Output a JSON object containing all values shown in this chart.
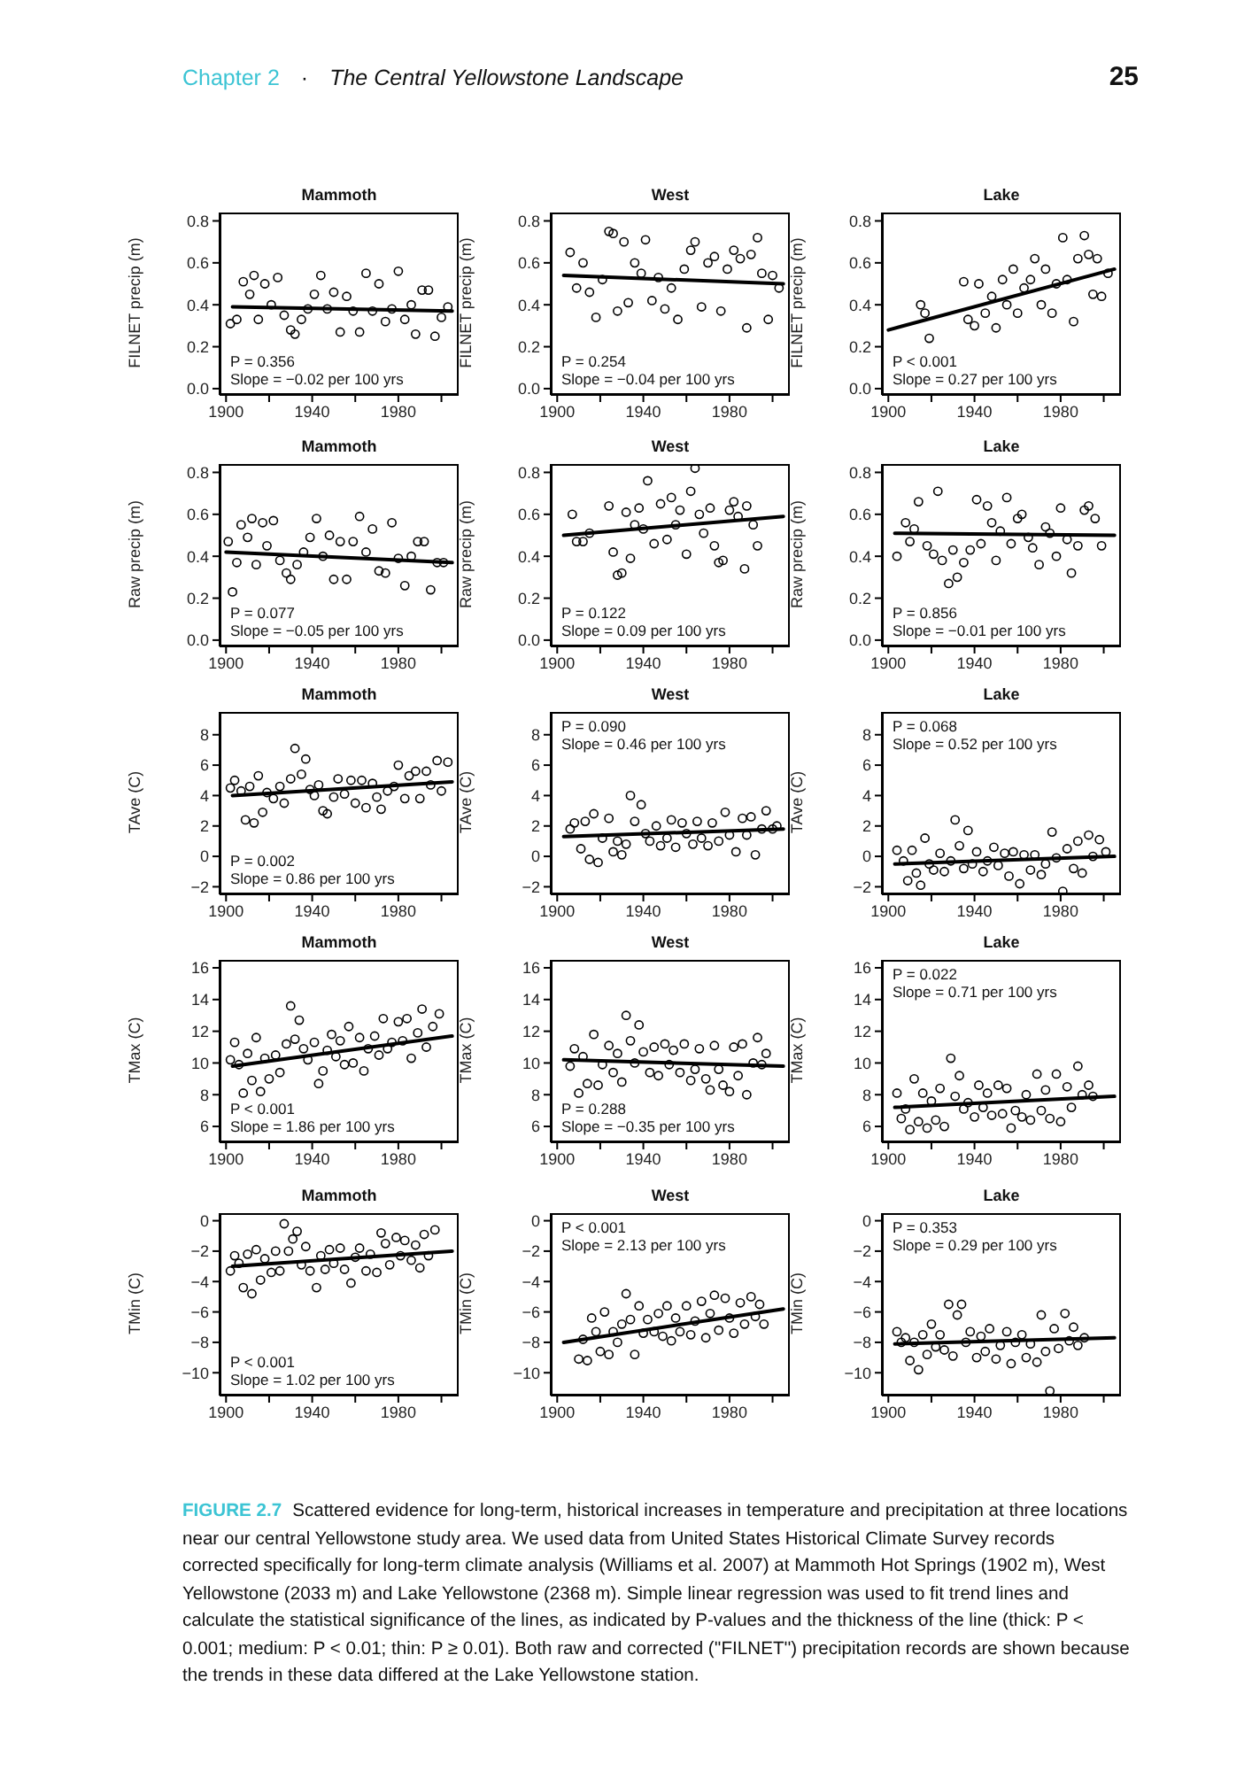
{
  "chart_data": [
    {
      "type": "scatter",
      "title": "Mammoth",
      "ylabel": "FILNET precip (m)",
      "marker": "circle",
      "xlim": [
        1897,
        2008
      ],
      "xticks": [
        1900,
        {
          "value": 1920,
          "label": null
        },
        1940,
        {
          "value": 1960,
          "label": null
        },
        1980,
        {
          "value": 2000,
          "label": null
        }
      ],
      "ylim": [
        -0.03,
        0.84
      ],
      "yticks": [
        {
          "value": 0,
          "label": "0.0"
        },
        0.2,
        0.4,
        0.6,
        0.8
      ],
      "annotations": [
        "Chapter 2",
        "·",
        "The Central Yellowstone Landscape",
        "25",
        "P = 0.356",
        "Slope = −0.02 per 100 yrs"
      ],
      "series": [
        {
          "type": "scatter",
          "color": "#000000",
          "x": [
            1902,
            1905,
            1908,
            1911,
            1913,
            1915,
            1918,
            1921,
            1924,
            1927,
            1930,
            1932,
            1935,
            1938,
            1941,
            1944,
            1947,
            1950,
            1953,
            1956,
            1959,
            1962,
            1965,
            1968,
            1971,
            1974,
            1977,
            1980,
            1983,
            1986,
            1988,
            1991,
            1994,
            1997,
            2000,
            2003
          ],
          "values": [
            0.31,
            0.33,
            0.51,
            0.45,
            0.54,
            0.33,
            0.5,
            0.4,
            0.53,
            0.35,
            0.28,
            0.26,
            0.33,
            0.38,
            0.45,
            0.54,
            0.38,
            0.46,
            0.27,
            0.44,
            0.37,
            0.27,
            0.55,
            0.37,
            0.5,
            0.32,
            0.38,
            0.56,
            0.33,
            0.4,
            0.26,
            0.47,
            0.47,
            0.25,
            0.34,
            0.39
          ]
        },
        {
          "type": "line",
          "color": "#000000",
          "x": [
            1903,
            2005
          ],
          "values": [
            0.39,
            0.37
          ],
          "marker": "none"
        }
      ]
    },
    {
      "type": "scatter",
      "title": "West",
      "ylabel": "FILNET precip (m)",
      "marker": "circle",
      "xlim": [
        1897,
        2008
      ],
      "xticks": [
        1900,
        {
          "value": 1920,
          "label": null
        },
        1940,
        {
          "value": 1960,
          "label": null
        },
        1980,
        {
          "value": 2000,
          "label": null
        }
      ],
      "ylim": [
        -0.03,
        0.84
      ],
      "yticks": [
        {
          "value": 0,
          "label": "0.0"
        },
        0.2,
        0.4,
        0.6,
        0.8
      ],
      "annotations": [
        "P = 0.254",
        "Slope = −0.04 per 100 yrs"
      ],
      "series": [
        {
          "type": "scatter",
          "color": "#000000",
          "x": [
            1906,
            1909,
            1912,
            1915,
            1918,
            1921,
            1924,
            1926,
            1928,
            1931,
            1933,
            1936,
            1939,
            1941,
            1944,
            1947,
            1950,
            1953,
            1956,
            1959,
            1962,
            1964,
            1967,
            1970,
            1973,
            1976,
            1979,
            1982,
            1985,
            1988,
            1990,
            1993,
            1995,
            1998,
            2000,
            2003
          ],
          "values": [
            0.65,
            0.48,
            0.6,
            0.46,
            0.34,
            0.52,
            0.75,
            0.74,
            0.37,
            0.7,
            0.41,
            0.6,
            0.55,
            0.71,
            0.42,
            0.53,
            0.38,
            0.48,
            0.33,
            0.57,
            0.66,
            0.7,
            0.39,
            0.6,
            0.63,
            0.37,
            0.57,
            0.66,
            0.62,
            0.29,
            0.64,
            0.72,
            0.55,
            0.33,
            0.54,
            0.48
          ]
        },
        {
          "type": "line",
          "color": "#000000",
          "x": [
            1903,
            2005
          ],
          "values": [
            0.54,
            0.5
          ],
          "marker": "none"
        }
      ]
    },
    {
      "type": "scatter",
      "title": "Lake",
      "ylabel": "FILNET precip (m)",
      "marker": "circle",
      "xlim": [
        1897,
        2008
      ],
      "xticks": [
        1900,
        {
          "value": 1920,
          "label": null
        },
        1940,
        {
          "value": 1960,
          "label": null
        },
        1980,
        {
          "value": 2000,
          "label": null
        }
      ],
      "ylim": [
        -0.03,
        0.84
      ],
      "yticks": [
        {
          "value": 0,
          "label": "0.0"
        },
        0.2,
        0.4,
        0.6,
        0.8
      ],
      "annotations": [
        "P < 0.001",
        "Slope = 0.27 per 100 yrs"
      ],
      "series": [
        {
          "type": "scatter",
          "color": "#000000",
          "x": [
            1915,
            1917,
            1919,
            1935,
            1937,
            1940,
            1942,
            1945,
            1948,
            1950,
            1953,
            1955,
            1958,
            1960,
            1963,
            1966,
            1968,
            1971,
            1973,
            1976,
            1978,
            1981,
            1983,
            1986,
            1988,
            1991,
            1993,
            1995,
            1997,
            1999,
            2002
          ],
          "values": [
            0.4,
            0.36,
            0.24,
            0.51,
            0.33,
            0.3,
            0.5,
            0.36,
            0.44,
            0.29,
            0.52,
            0.4,
            0.57,
            0.36,
            0.48,
            0.52,
            0.62,
            0.4,
            0.57,
            0.36,
            0.5,
            0.72,
            0.52,
            0.32,
            0.62,
            0.73,
            0.64,
            0.45,
            0.62,
            0.44,
            0.55
          ]
        },
        {
          "type": "line",
          "color": "#000000",
          "x": [
            1900,
            2005
          ],
          "values": [
            0.28,
            0.57
          ],
          "marker": "none"
        }
      ]
    },
    {
      "type": "scatter",
      "title": "Mammoth",
      "ylabel": "Raw precip (m)",
      "marker": "circle",
      "xlim": [
        1897,
        2008
      ],
      "xticks": [
        1900,
        {
          "value": 1920,
          "label": null
        },
        1940,
        {
          "value": 1960,
          "label": null
        },
        1980,
        {
          "value": 2000,
          "label": null
        }
      ],
      "ylim": [
        -0.03,
        0.84
      ],
      "yticks": [
        {
          "value": 0,
          "label": "0.0"
        },
        0.2,
        0.4,
        0.6,
        0.8
      ],
      "annotations": [
        "P = 0.077",
        "Slope = −0.05 per 100 yrs"
      ],
      "series": [
        {
          "type": "scatter",
          "color": "#000000",
          "x": [
            1901,
            1903,
            1905,
            1907,
            1910,
            1912,
            1914,
            1917,
            1919,
            1922,
            1925,
            1928,
            1930,
            1933,
            1936,
            1939,
            1942,
            1945,
            1948,
            1950,
            1953,
            1956,
            1959,
            1962,
            1965,
            1968,
            1971,
            1974,
            1977,
            1980,
            1983,
            1986,
            1989,
            1992,
            1995,
            1998,
            2001
          ],
          "values": [
            0.47,
            0.23,
            0.37,
            0.55,
            0.49,
            0.58,
            0.36,
            0.56,
            0.45,
            0.57,
            0.38,
            0.32,
            0.29,
            0.36,
            0.42,
            0.49,
            0.58,
            0.4,
            0.5,
            0.29,
            0.47,
            0.29,
            0.47,
            0.59,
            0.42,
            0.53,
            0.33,
            0.32,
            0.56,
            0.39,
            0.26,
            0.4,
            0.47,
            0.47,
            0.24,
            0.37,
            0.37
          ]
        },
        {
          "type": "line",
          "color": "#000000",
          "x": [
            1900,
            2005
          ],
          "values": [
            0.42,
            0.37
          ],
          "marker": "none"
        }
      ]
    },
    {
      "type": "scatter",
      "title": "West",
      "ylabel": "Raw precip (m)",
      "marker": "circle",
      "xlim": [
        1897,
        2008
      ],
      "xticks": [
        1900,
        {
          "value": 1920,
          "label": null
        },
        1940,
        {
          "value": 1960,
          "label": null
        },
        1980,
        {
          "value": 2000,
          "label": null
        }
      ],
      "ylim": [
        -0.03,
        0.84
      ],
      "yticks": [
        {
          "value": 0,
          "label": "0.0"
        },
        0.2,
        0.4,
        0.6,
        0.8
      ],
      "annotations": [
        "P = 0.122",
        "Slope = 0.09 per 100 yrs"
      ],
      "series": [
        {
          "type": "scatter",
          "color": "#000000",
          "x": [
            1907,
            1909,
            1912,
            1915,
            1924,
            1926,
            1928,
            1930,
            1932,
            1934,
            1936,
            1938,
            1940,
            1942,
            1945,
            1948,
            1951,
            1953,
            1955,
            1957,
            1960,
            1962,
            1964,
            1966,
            1968,
            1971,
            1973,
            1975,
            1977,
            1980,
            1982,
            1984,
            1987,
            1988,
            1991,
            1993
          ],
          "values": [
            0.6,
            0.47,
            0.47,
            0.51,
            0.64,
            0.42,
            0.31,
            0.32,
            0.61,
            0.39,
            0.55,
            0.63,
            0.53,
            0.76,
            0.46,
            0.65,
            0.48,
            0.68,
            0.55,
            0.62,
            0.41,
            0.71,
            0.82,
            0.6,
            0.51,
            0.63,
            0.45,
            0.37,
            0.38,
            0.62,
            0.66,
            0.59,
            0.34,
            0.64,
            0.55,
            0.45
          ]
        },
        {
          "type": "line",
          "color": "#000000",
          "x": [
            1903,
            2005
          ],
          "values": [
            0.5,
            0.59
          ],
          "marker": "none"
        }
      ]
    },
    {
      "type": "scatter",
      "title": "Lake",
      "ylabel": "Raw precip (m)",
      "marker": "circle",
      "xlim": [
        1897,
        2008
      ],
      "xticks": [
        1900,
        {
          "value": 1920,
          "label": null
        },
        1940,
        {
          "value": 1960,
          "label": null
        },
        1980,
        {
          "value": 2000,
          "label": null
        }
      ],
      "ylim": [
        -0.03,
        0.84
      ],
      "yticks": [
        {
          "value": 0,
          "label": "0.0"
        },
        0.2,
        0.4,
        0.6,
        0.8
      ],
      "annotations": [
        "P = 0.856",
        "Slope = −0.01 per 100 yrs"
      ],
      "series": [
        {
          "type": "scatter",
          "color": "#000000",
          "x": [
            1904,
            1908,
            1910,
            1912,
            1914,
            1918,
            1921,
            1923,
            1925,
            1928,
            1930,
            1932,
            1935,
            1938,
            1941,
            1943,
            1946,
            1948,
            1950,
            1952,
            1955,
            1957,
            1960,
            1962,
            1965,
            1967,
            1970,
            1973,
            1975,
            1978,
            1980,
            1983,
            1985,
            1988,
            1991,
            1993,
            1996,
            1999
          ],
          "values": [
            0.4,
            0.56,
            0.47,
            0.53,
            0.66,
            0.45,
            0.41,
            0.71,
            0.38,
            0.27,
            0.43,
            0.3,
            0.37,
            0.43,
            0.67,
            0.46,
            0.64,
            0.56,
            0.38,
            0.52,
            0.68,
            0.46,
            0.58,
            0.6,
            0.49,
            0.44,
            0.36,
            0.54,
            0.51,
            0.4,
            0.63,
            0.48,
            0.32,
            0.45,
            0.62,
            0.64,
            0.58,
            0.45
          ]
        },
        {
          "type": "line",
          "color": "#000000",
          "x": [
            1903,
            2005
          ],
          "values": [
            0.51,
            0.5
          ],
          "marker": "none"
        }
      ]
    },
    {
      "type": "scatter",
      "title": "Mammoth",
      "ylabel": "TAve (C)",
      "marker": "circle",
      "xlim": [
        1897,
        2008
      ],
      "xticks": [
        1900,
        {
          "value": 1920,
          "label": null
        },
        1940,
        {
          "value": 1960,
          "label": null
        },
        1980,
        {
          "value": 2000,
          "label": null
        }
      ],
      "ylim": [
        -2.5,
        9.5
      ],
      "yticks": [
        {
          "value": -2,
          "label": "−2"
        },
        0,
        2,
        4,
        6,
        8
      ],
      "annotations": [
        "P = 0.002",
        "Slope = 0.86 per 100 yrs"
      ],
      "series": [
        {
          "type": "scatter",
          "color": "#000000",
          "x": [
            1902,
            1904,
            1907,
            1909,
            1911,
            1913,
            1915,
            1917,
            1919,
            1922,
            1925,
            1927,
            1930,
            1932,
            1935,
            1937,
            1939,
            1941,
            1943,
            1945,
            1947,
            1950,
            1952,
            1955,
            1958,
            1960,
            1963,
            1965,
            1968,
            1970,
            1972,
            1975,
            1978,
            1980,
            1983,
            1985,
            1988,
            1990,
            1993,
            1995,
            1998,
            2000,
            2003
          ],
          "values": [
            4.5,
            5.0,
            4.3,
            2.4,
            4.6,
            2.2,
            5.3,
            2.9,
            4.2,
            3.8,
            4.6,
            3.5,
            5.1,
            7.1,
            5.4,
            6.4,
            4.4,
            4.0,
            4.7,
            3.0,
            2.8,
            3.9,
            5.1,
            4.1,
            5.0,
            3.5,
            5.0,
            3.2,
            4.8,
            3.9,
            3.1,
            4.3,
            4.6,
            6.0,
            3.8,
            5.3,
            5.6,
            3.8,
            5.6,
            4.7,
            6.3,
            4.3,
            6.2
          ]
        },
        {
          "type": "line",
          "color": "#000000",
          "x": [
            1903,
            2005
          ],
          "values": [
            4.0,
            4.9
          ],
          "marker": "none"
        }
      ]
    },
    {
      "type": "scatter",
      "title": "West",
      "ylabel": "TAve (C)",
      "marker": "circle",
      "xlim": [
        1897,
        2008
      ],
      "xticks": [
        1900,
        {
          "value": 1920,
          "label": null
        },
        1940,
        {
          "value": 1960,
          "label": null
        },
        1980,
        {
          "value": 2000,
          "label": null
        }
      ],
      "ylim": [
        -2.5,
        9.5
      ],
      "yticks": [
        {
          "value": -2,
          "label": "−2"
        },
        0,
        2,
        4,
        6,
        8
      ],
      "annotations": [
        "P = 0.090",
        "Slope = 0.46 per 100 yrs"
      ],
      "series": [
        {
          "type": "scatter",
          "color": "#000000",
          "x": [
            1906,
            1908,
            1911,
            1913,
            1915,
            1917,
            1919,
            1921,
            1924,
            1926,
            1928,
            1930,
            1932,
            1934,
            1936,
            1939,
            1941,
            1943,
            1946,
            1948,
            1951,
            1953,
            1955,
            1958,
            1960,
            1963,
            1965,
            1967,
            1970,
            1972,
            1975,
            1978,
            1980,
            1983,
            1986,
            1988,
            1990,
            1992,
            1995,
            1997,
            2000,
            2002
          ],
          "values": [
            1.8,
            2.2,
            0.5,
            2.3,
            -0.2,
            2.8,
            -0.4,
            1.2,
            2.5,
            0.3,
            1.0,
            0.1,
            0.8,
            4.0,
            2.3,
            3.4,
            1.5,
            1.0,
            2.0,
            0.7,
            1.2,
            2.4,
            0.6,
            2.2,
            1.5,
            0.8,
            2.3,
            1.2,
            0.7,
            2.2,
            1.0,
            2.9,
            1.4,
            0.3,
            2.5,
            1.4,
            2.6,
            0.1,
            1.8,
            3.0,
            1.8,
            2.0
          ]
        },
        {
          "type": "line",
          "color": "#000000",
          "x": [
            1903,
            2005
          ],
          "values": [
            1.3,
            1.8
          ],
          "marker": "none"
        }
      ]
    },
    {
      "type": "scatter",
      "title": "Lake",
      "ylabel": "TAve (C)",
      "marker": "circle",
      "xlim": [
        1897,
        2008
      ],
      "xticks": [
        1900,
        {
          "value": 1920,
          "label": null
        },
        1940,
        {
          "value": 1960,
          "label": null
        },
        1980,
        {
          "value": 2000,
          "label": null
        }
      ],
      "ylim": [
        -2.5,
        9.5
      ],
      "yticks": [
        {
          "value": -2,
          "label": "−2"
        },
        0,
        2,
        4,
        6,
        8
      ],
      "annotations": [
        "P = 0.068",
        "Slope = 0.52 per 100 yrs"
      ],
      "series": [
        {
          "type": "scatter",
          "color": "#000000",
          "x": [
            1904,
            1907,
            1909,
            1911,
            1913,
            1915,
            1917,
            1919,
            1921,
            1924,
            1926,
            1929,
            1931,
            1933,
            1935,
            1937,
            1939,
            1941,
            1944,
            1946,
            1949,
            1951,
            1954,
            1956,
            1958,
            1961,
            1963,
            1966,
            1968,
            1971,
            1973,
            1976,
            1978,
            1981,
            1983,
            1986,
            1988,
            1990,
            1993,
            1995,
            1998,
            2001
          ],
          "values": [
            0.4,
            -0.3,
            -1.6,
            0.4,
            -1.1,
            -1.9,
            1.2,
            -0.5,
            -0.9,
            0.2,
            -1.0,
            -0.3,
            2.4,
            0.7,
            -0.8,
            1.7,
            -0.5,
            0.3,
            -1.0,
            -0.3,
            0.6,
            -0.6,
            0.2,
            -1.3,
            0.3,
            -1.8,
            0.1,
            -0.9,
            0.1,
            -1.2,
            -0.5,
            1.6,
            -0.1,
            -2.3,
            0.5,
            -0.8,
            1.0,
            -1.1,
            1.4,
            0.0,
            1.1,
            0.3
          ]
        },
        {
          "type": "line",
          "color": "#000000",
          "x": [
            1903,
            2005
          ],
          "values": [
            -0.5,
            0.0
          ],
          "marker": "none"
        }
      ]
    },
    {
      "type": "scatter",
      "title": "Mammoth",
      "ylabel": "TMax (C)",
      "marker": "circle",
      "xlim": [
        1897,
        2008
      ],
      "xticks": [
        1900,
        {
          "value": 1920,
          "label": null
        },
        1940,
        {
          "value": 1960,
          "label": null
        },
        1980,
        {
          "value": 2000,
          "label": null
        }
      ],
      "ylim": [
        5,
        16.5
      ],
      "yticks": [
        6,
        8,
        10,
        12,
        14,
        16
      ],
      "annotations": [
        "P < 0.001",
        "Slope = 1.86 per 100 yrs"
      ],
      "series": [
        {
          "type": "scatter",
          "color": "#000000",
          "x": [
            1902,
            1904,
            1906,
            1908,
            1910,
            1912,
            1914,
            1916,
            1918,
            1920,
            1923,
            1925,
            1928,
            1930,
            1932,
            1934,
            1936,
            1938,
            1941,
            1943,
            1945,
            1947,
            1949,
            1951,
            1953,
            1955,
            1957,
            1959,
            1962,
            1964,
            1966,
            1969,
            1971,
            1973,
            1975,
            1977,
            1980,
            1982,
            1984,
            1986,
            1989,
            1991,
            1993,
            1996,
            1999
          ],
          "values": [
            10.2,
            11.3,
            9.9,
            8.1,
            10.6,
            8.9,
            11.6,
            8.2,
            10.3,
            9.0,
            10.5,
            9.4,
            11.2,
            13.6,
            11.5,
            12.7,
            10.9,
            10.2,
            11.3,
            8.7,
            9.5,
            10.8,
            11.8,
            10.4,
            11.4,
            9.9,
            12.3,
            10.0,
            11.6,
            9.5,
            10.9,
            11.7,
            10.5,
            12.8,
            10.9,
            11.3,
            12.6,
            11.4,
            12.8,
            10.3,
            11.9,
            13.4,
            11.0,
            12.3,
            13.1
          ]
        },
        {
          "type": "line",
          "color": "#000000",
          "x": [
            1903,
            2005
          ],
          "values": [
            9.8,
            11.7
          ],
          "marker": "none"
        }
      ]
    },
    {
      "type": "scatter",
      "title": "West",
      "ylabel": "TMax (C)",
      "marker": "circle",
      "xlim": [
        1897,
        2008
      ],
      "xticks": [
        1900,
        {
          "value": 1920,
          "label": null
        },
        1940,
        {
          "value": 1960,
          "label": null
        },
        1980,
        {
          "value": 2000,
          "label": null
        }
      ],
      "ylim": [
        5,
        16.5
      ],
      "yticks": [
        6,
        8,
        10,
        12,
        14,
        16
      ],
      "annotations": [
        "P = 0.288",
        "Slope = −0.35 per 100 yrs"
      ],
      "series": [
        {
          "type": "scatter",
          "color": "#000000",
          "x": [
            1906,
            1908,
            1910,
            1912,
            1914,
            1917,
            1919,
            1921,
            1924,
            1926,
            1928,
            1930,
            1932,
            1934,
            1936,
            1938,
            1940,
            1943,
            1945,
            1947,
            1950,
            1952,
            1954,
            1957,
            1959,
            1962,
            1964,
            1966,
            1969,
            1971,
            1973,
            1975,
            1977,
            1980,
            1982,
            1984,
            1986,
            1988,
            1991,
            1993,
            1995,
            1997
          ],
          "values": [
            9.8,
            10.9,
            8.1,
            10.4,
            8.7,
            11.8,
            8.6,
            9.9,
            11.1,
            9.4,
            10.6,
            8.8,
            13.0,
            11.4,
            10.0,
            12.4,
            10.7,
            9.4,
            11.0,
            9.2,
            11.2,
            9.9,
            10.8,
            9.4,
            11.2,
            8.9,
            9.6,
            10.9,
            9.0,
            8.3,
            11.1,
            9.6,
            8.6,
            8.2,
            11.0,
            9.2,
            11.2,
            8.0,
            10.0,
            11.6,
            9.9,
            10.6
          ]
        },
        {
          "type": "line",
          "color": "#000000",
          "x": [
            1903,
            2005
          ],
          "values": [
            10.2,
            9.8
          ],
          "marker": "none"
        }
      ]
    },
    {
      "type": "scatter",
      "title": "Lake",
      "ylabel": "TMax (C)",
      "marker": "circle",
      "xlim": [
        1897,
        2008
      ],
      "xticks": [
        1900,
        {
          "value": 1920,
          "label": null
        },
        1940,
        {
          "value": 1960,
          "label": null
        },
        1980,
        {
          "value": 2000,
          "label": null
        }
      ],
      "ylim": [
        5,
        16.5
      ],
      "yticks": [
        6,
        8,
        10,
        12,
        14,
        16
      ],
      "annotations": [
        "P = 0.022",
        "Slope = 0.71 per 100 yrs"
      ],
      "series": [
        {
          "type": "scatter",
          "color": "#000000",
          "x": [
            1904,
            1906,
            1908,
            1910,
            1912,
            1914,
            1916,
            1918,
            1920,
            1922,
            1924,
            1926,
            1929,
            1931,
            1933,
            1935,
            1937,
            1940,
            1942,
            1944,
            1946,
            1948,
            1951,
            1953,
            1955,
            1957,
            1959,
            1962,
            1964,
            1966,
            1969,
            1971,
            1973,
            1975,
            1978,
            1980,
            1983,
            1985,
            1988,
            1990,
            1993,
            1995
          ],
          "values": [
            8.1,
            6.5,
            7.1,
            5.8,
            9.0,
            6.3,
            8.1,
            5.9,
            7.6,
            6.4,
            8.4,
            6.0,
            10.3,
            7.9,
            9.2,
            7.1,
            7.5,
            6.6,
            8.6,
            7.2,
            8.1,
            6.7,
            8.6,
            6.8,
            8.4,
            5.9,
            7.0,
            6.6,
            8.0,
            6.4,
            9.3,
            7.0,
            8.3,
            6.5,
            9.3,
            6.3,
            8.5,
            7.2,
            9.8,
            8.0,
            8.6,
            7.9
          ]
        },
        {
          "type": "line",
          "color": "#000000",
          "x": [
            1903,
            2005
          ],
          "values": [
            7.2,
            7.9
          ],
          "marker": "none"
        }
      ]
    },
    {
      "type": "scatter",
      "title": "Mammoth",
      "ylabel": "TMin (C)",
      "marker": "circle",
      "xlim": [
        1897,
        2008
      ],
      "xticks": [
        1900,
        {
          "value": 1920,
          "label": null
        },
        1940,
        {
          "value": 1960,
          "label": null
        },
        1980,
        {
          "value": 2000,
          "label": null
        }
      ],
      "ylim": [
        -11.5,
        0.5
      ],
      "yticks": [
        {
          "value": -10,
          "label": "−10"
        },
        {
          "value": -8,
          "label": "−8"
        },
        {
          "value": -6,
          "label": "−6"
        },
        {
          "value": -4,
          "label": "−4"
        },
        {
          "value": -2,
          "label": "−2"
        },
        0
      ],
      "annotations": [
        "P < 0.001",
        "Slope = 1.02 per 100 yrs"
      ],
      "series": [
        {
          "type": "scatter",
          "color": "#000000",
          "x": [
            1902,
            1904,
            1906,
            1908,
            1910,
            1912,
            1914,
            1916,
            1918,
            1921,
            1923,
            1925,
            1927,
            1929,
            1931,
            1933,
            1935,
            1937,
            1939,
            1942,
            1944,
            1946,
            1948,
            1950,
            1953,
            1955,
            1958,
            1960,
            1962,
            1965,
            1967,
            1970,
            1972,
            1974,
            1976,
            1979,
            1981,
            1983,
            1986,
            1988,
            1990,
            1992,
            1994,
            1997
          ],
          "values": [
            -3.3,
            -2.3,
            -2.8,
            -4.4,
            -2.2,
            -4.8,
            -1.9,
            -3.9,
            -2.5,
            -3.4,
            -2.0,
            -3.3,
            -0.2,
            -2.0,
            -1.2,
            -0.7,
            -2.9,
            -1.7,
            -3.3,
            -4.4,
            -2.3,
            -3.2,
            -1.9,
            -2.8,
            -1.8,
            -3.2,
            -4.1,
            -2.4,
            -1.8,
            -3.3,
            -2.2,
            -3.4,
            -0.8,
            -1.5,
            -2.9,
            -1.1,
            -2.3,
            -1.3,
            -2.6,
            -1.6,
            -3.1,
            -0.9,
            -2.3,
            -0.6
          ]
        },
        {
          "type": "line",
          "color": "#000000",
          "x": [
            1903,
            2005
          ],
          "values": [
            -3.0,
            -2.0
          ],
          "marker": "none"
        }
      ]
    },
    {
      "type": "scatter",
      "title": "West",
      "ylabel": "TMin (C)",
      "marker": "circle",
      "xlim": [
        1897,
        2008
      ],
      "xticks": [
        1900,
        {
          "value": 1920,
          "label": null
        },
        1940,
        {
          "value": 1960,
          "label": null
        },
        1980,
        {
          "value": 2000,
          "label": null
        }
      ],
      "ylim": [
        -11.5,
        0.5
      ],
      "yticks": [
        {
          "value": -10,
          "label": "−10"
        },
        {
          "value": -8,
          "label": "−8"
        },
        {
          "value": -6,
          "label": "−6"
        },
        {
          "value": -4,
          "label": "−4"
        },
        {
          "value": -2,
          "label": "−2"
        },
        0
      ],
      "annotations": [
        "P < 0.001",
        "Slope = 2.13 per 100 yrs"
      ],
      "series": [
        {
          "type": "scatter",
          "color": "#000000",
          "x": [
            1910,
            1912,
            1914,
            1916,
            1918,
            1920,
            1922,
            1924,
            1926,
            1928,
            1930,
            1932,
            1934,
            1936,
            1938,
            1940,
            1942,
            1945,
            1947,
            1949,
            1951,
            1953,
            1955,
            1957,
            1960,
            1962,
            1964,
            1967,
            1969,
            1971,
            1973,
            1975,
            1978,
            1980,
            1982,
            1985,
            1987,
            1990,
            1992,
            1994,
            1996
          ],
          "values": [
            -9.1,
            -7.8,
            -9.2,
            -6.4,
            -7.3,
            -8.6,
            -6.0,
            -8.8,
            -7.3,
            -8.0,
            -6.8,
            -4.8,
            -6.5,
            -8.8,
            -5.6,
            -7.4,
            -6.5,
            -7.3,
            -6.1,
            -7.6,
            -5.6,
            -7.9,
            -6.4,
            -7.3,
            -5.6,
            -7.5,
            -6.6,
            -5.3,
            -7.7,
            -6.1,
            -4.9,
            -7.2,
            -5.1,
            -6.4,
            -7.4,
            -5.4,
            -6.8,
            -5.0,
            -6.3,
            -5.5,
            -6.8
          ]
        },
        {
          "type": "line",
          "color": "#000000",
          "x": [
            1903,
            2005
          ],
          "values": [
            -8.0,
            -5.8
          ],
          "marker": "none"
        }
      ]
    },
    {
      "type": "scatter",
      "title": "Lake",
      "ylabel": "TMin (C)",
      "marker": "circle",
      "xlim": [
        1897,
        2008
      ],
      "xticks": [
        1900,
        {
          "value": 1920,
          "label": null
        },
        1940,
        {
          "value": 1960,
          "label": null
        },
        1980,
        {
          "value": 2000,
          "label": null
        }
      ],
      "ylim": [
        -11.5,
        0.5
      ],
      "yticks": [
        {
          "value": -10,
          "label": "−10"
        },
        {
          "value": -8,
          "label": "−8"
        },
        {
          "value": -6,
          "label": "−6"
        },
        {
          "value": -4,
          "label": "−4"
        },
        {
          "value": -2,
          "label": "−2"
        },
        0
      ],
      "annotations": [
        "P = 0.353",
        "Slope = 0.29 per 100 yrs",
        "FIGURE 2.7",
        "Scattered evidence for long-term, historical increases in temperature and precipitation at three locations near our central Yellowstone study area. We used data from United States Historical Climate Survey records corrected specifically for long-term climate analysis (Williams et al. 2007) at Mammoth Hot Springs (1902 m), West Yellowstone (2033 m) and Lake Yellowstone (2368 m). Simple linear regression was used to fit trend lines and calculate the statistical significance of the lines, as indicated by P-values and the thickness of the line (thick: P < 0.001; medium: P < 0.01; thin: P ≥ 0.01). Both raw and corrected (''FILNET'') precipitation records are shown because the trends in these data differed at the Lake Yellowstone station."
      ],
      "series": [
        {
          "type": "scatter",
          "color": "#000000",
          "x": [
            1904,
            1906,
            1908,
            1910,
            1912,
            1914,
            1916,
            1918,
            1920,
            1922,
            1924,
            1926,
            1928,
            1930,
            1932,
            1934,
            1936,
            1938,
            1941,
            1943,
            1945,
            1947,
            1950,
            1952,
            1955,
            1957,
            1959,
            1962,
            1964,
            1966,
            1969,
            1971,
            1973,
            1975,
            1977,
            1979,
            1982,
            1984,
            1986,
            1988,
            1991
          ],
          "values": [
            -7.3,
            -8.0,
            -7.7,
            -9.2,
            -8.0,
            -9.8,
            -7.5,
            -8.8,
            -6.8,
            -8.3,
            -7.5,
            -8.5,
            -5.5,
            -8.9,
            -6.2,
            -5.5,
            -8.0,
            -7.3,
            -9.0,
            -7.6,
            -8.6,
            -7.1,
            -9.1,
            -8.2,
            -7.3,
            -9.4,
            -8.0,
            -7.5,
            -9.0,
            -8.1,
            -9.3,
            -6.2,
            -8.6,
            -11.2,
            -7.1,
            -8.4,
            -6.1,
            -7.9,
            -7.0,
            -8.2,
            -7.7
          ]
        },
        {
          "type": "line",
          "color": "#000000",
          "x": [
            1903,
            2005
          ],
          "values": [
            -8.1,
            -7.7
          ],
          "marker": "none"
        }
      ]
    }
  ]
}
